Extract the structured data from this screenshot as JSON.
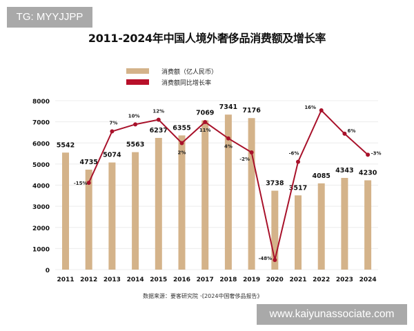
{
  "watermark_top": "TG: MYYJJPP",
  "watermark_bottom": "www.kaiyunassociate.com",
  "source": "数据来源：要客研究院 ·《2024中国奢侈品报告》",
  "colors": {
    "bar": "#d4b38a",
    "line": "#a8112a",
    "grid": "#ececec"
  },
  "chart_data": {
    "type": "bar",
    "title": "2011-2024年中国人境外奢侈品消费额及增长率",
    "xlabel": "",
    "ylabel": "",
    "ylim": [
      0,
      8000
    ],
    "yticks": [
      0,
      1000,
      2000,
      3000,
      4000,
      5000,
      6000,
      7000,
      8000
    ],
    "grid": true,
    "legend_position": "top-left",
    "categories": [
      "2011",
      "2012",
      "2013",
      "2014",
      "2015",
      "2016",
      "2017",
      "2018",
      "2019",
      "2020",
      "2021",
      "2022",
      "2023",
      "2024"
    ],
    "series": [
      {
        "name": "消费额（亿人民币）",
        "type": "bar",
        "values": [
          5542,
          4735,
          5074,
          5563,
          6237,
          6355,
          7069,
          7341,
          7176,
          3738,
          3517,
          4085,
          4343,
          4230
        ]
      },
      {
        "name": "消费额同比增长率",
        "type": "line",
        "values": [
          null,
          -15,
          7,
          10,
          12,
          2,
          11,
          4,
          -2,
          -48,
          -6,
          16,
          6,
          -3
        ],
        "labels": [
          "",
          "-15%",
          "7%",
          "10%",
          "12%",
          "2%",
          "11%",
          "4%",
          "-2%",
          "-48%",
          "-6%",
          "16%",
          "6%",
          "-3%"
        ]
      }
    ]
  }
}
